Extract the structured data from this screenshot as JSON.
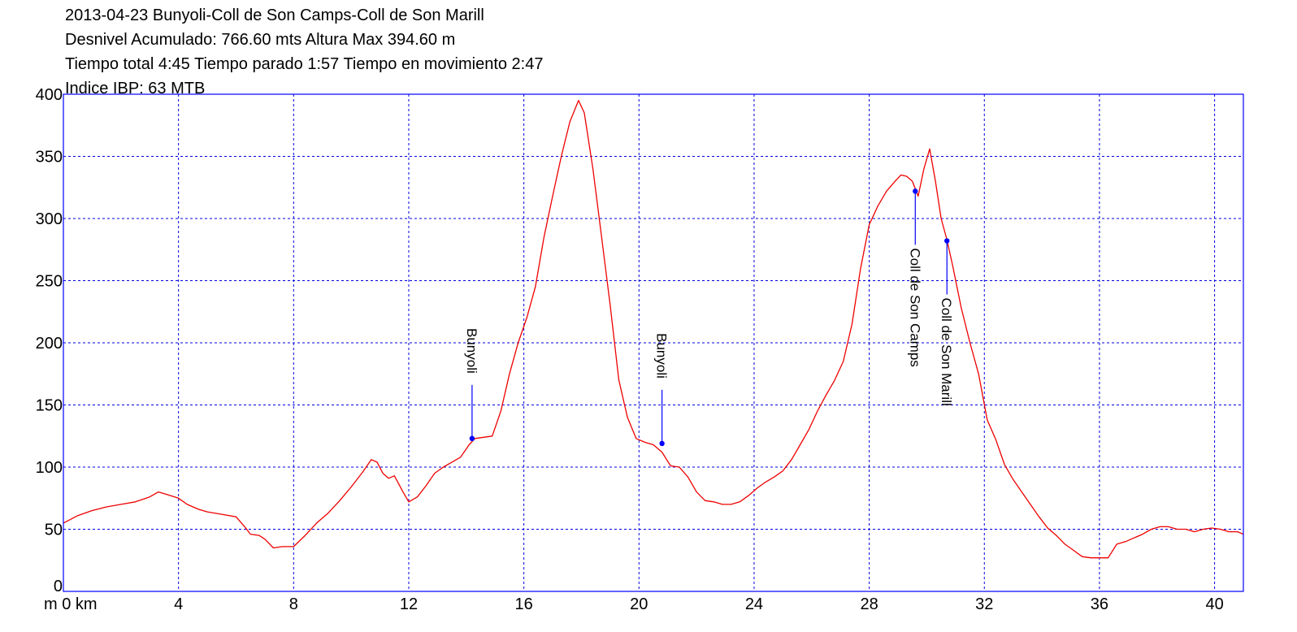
{
  "header": {
    "title": "2013-04-23 Bunyoli-Coll de Son Camps-Coll de Son Marill",
    "line2": "Desnivel Acumulado: 766.60 mts  Altura Max 394.60 m",
    "line3": "Tiempo total 4:45 Tiempo parado 1:57 Tiempo en movimiento 2:47",
    "line4": "Indice IBP: 63 MTB"
  },
  "chart_data": {
    "type": "line",
    "title": "2013-04-23 Bunyoli-Coll de Son Camps-Coll de Son Marill",
    "xlabel_unit": "km",
    "ylabel_unit": "m",
    "x_origin_label": "m 0 km",
    "xlim": [
      0,
      41
    ],
    "ylim": [
      0,
      400
    ],
    "x_ticks": [
      0,
      4,
      8,
      12,
      16,
      20,
      24,
      28,
      32,
      36,
      40
    ],
    "x_tick_labels": [
      "m 0 km",
      "4",
      "8",
      "12",
      "16",
      "20",
      "24",
      "28",
      "32",
      "36",
      "40"
    ],
    "y_ticks": [
      0,
      50,
      100,
      150,
      200,
      250,
      300,
      350,
      400
    ],
    "y_tick_labels": [
      "0",
      "50",
      "100",
      "150",
      "200",
      "250",
      "300",
      "350",
      "400"
    ],
    "grid": true,
    "colors": {
      "line": "#ee0000",
      "grid": "#0000dd",
      "axes": "#0000ff",
      "markers": "#0000ff"
    },
    "series": [
      {
        "x": [
          0,
          0.5,
          1,
          1.5,
          2,
          2.5,
          3,
          3.3,
          3.6,
          4,
          4.3,
          4.7,
          5,
          5.5,
          6,
          6.3,
          6.5,
          6.8,
          7,
          7.3,
          7.6,
          7.8,
          8,
          8.4,
          8.8,
          9.2,
          9.6,
          10,
          10.4,
          10.7,
          10.9,
          11.1,
          11.3,
          11.5,
          11.8,
          12,
          12.3,
          12.6,
          12.9,
          13.2,
          13.5,
          13.8,
          14.1,
          14.3,
          14.6,
          14.9,
          15.2,
          15.5,
          15.8,
          16.1,
          16.4,
          16.7,
          17,
          17.3,
          17.6,
          17.9,
          18.1,
          18.4,
          18.7,
          19,
          19.3,
          19.6,
          19.9,
          20.2,
          20.5,
          20.8,
          21.1,
          21.4,
          21.7,
          22,
          22.3,
          22.6,
          22.9,
          23.2,
          23.5,
          23.8,
          24.1,
          24.4,
          24.7,
          25,
          25.3,
          25.6,
          25.9,
          26.2,
          26.5,
          26.8,
          27.1,
          27.4,
          27.7,
          28,
          28.3,
          28.6,
          28.9,
          29.1,
          29.3,
          29.5,
          29.7,
          29.9,
          30.1,
          30.3,
          30.5,
          30.7,
          30.9,
          31.2,
          31.5,
          31.8,
          32.1,
          32.4,
          32.7,
          33,
          33.3,
          33.6,
          33.9,
          34.2,
          34.5,
          34.8,
          35.1,
          35.4,
          35.7,
          36,
          36.3,
          36.6,
          36.9,
          37.2,
          37.5,
          37.8,
          38.1,
          38.4,
          38.7,
          39,
          39.3,
          39.6,
          39.9,
          40.2,
          40.5,
          40.8,
          41
        ],
        "y": [
          55,
          61,
          65,
          68,
          70,
          72,
          76,
          80,
          78,
          75,
          70,
          66,
          64,
          62,
          60,
          52,
          46,
          45,
          42,
          35,
          36,
          36,
          36,
          45,
          55,
          63,
          73,
          84,
          96,
          106,
          104,
          95,
          91,
          93,
          80,
          72,
          76,
          85,
          95,
          100,
          104,
          108,
          118,
          123,
          124,
          125,
          145,
          175,
          200,
          220,
          245,
          285,
          318,
          350,
          378,
          395,
          385,
          340,
          285,
          230,
          170,
          140,
          123,
          120,
          118,
          112,
          101,
          100,
          92,
          80,
          73,
          72,
          70,
          70,
          72,
          77,
          83,
          88,
          92,
          97,
          106,
          118,
          130,
          145,
          158,
          170,
          185,
          215,
          260,
          295,
          310,
          322,
          330,
          335,
          334,
          330,
          318,
          340,
          356,
          330,
          300,
          283,
          262,
          228,
          200,
          175,
          138,
          122,
          102,
          90,
          80,
          70,
          60,
          51,
          45,
          38,
          33,
          28,
          27,
          27,
          27,
          38,
          40,
          43,
          46,
          50,
          52,
          52,
          50,
          50,
          48,
          50,
          51,
          50,
          48,
          48,
          46
        ]
      }
    ],
    "annotations": [
      {
        "label": "Bunyoli",
        "x": 14.2,
        "y": 123
      },
      {
        "label": "Bunyoli",
        "x": 20.8,
        "y": 119
      },
      {
        "label": "Coll de Son Camps",
        "x": 29.6,
        "y": 322
      },
      {
        "label": "Coll de Son Marill",
        "x": 30.7,
        "y": 282
      }
    ]
  }
}
